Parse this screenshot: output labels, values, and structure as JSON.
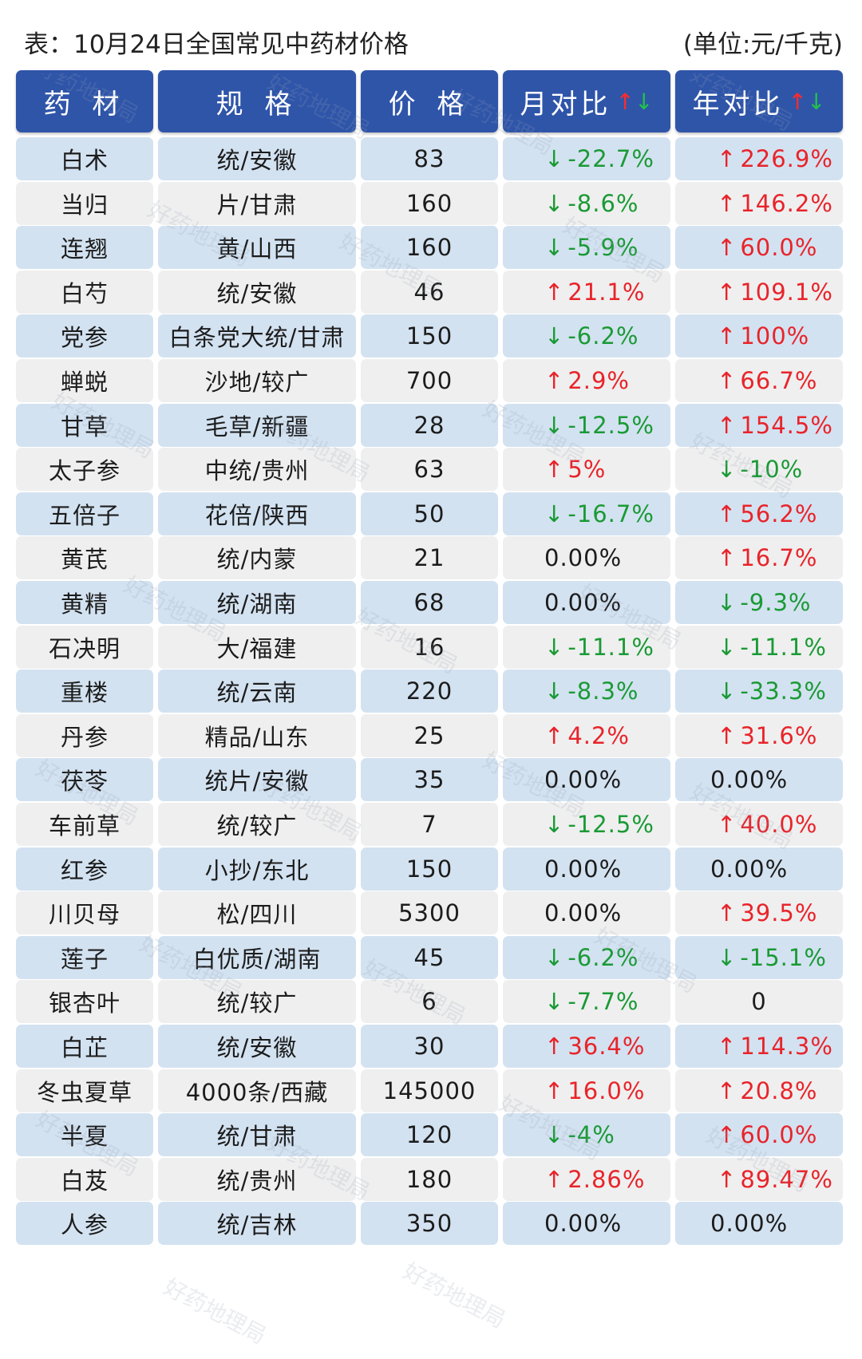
{
  "title": "表：10月24日全国常见中药材价格",
  "unit": "(单位:元/千克)",
  "watermark": "好药地理局",
  "colors": {
    "header_bg": "#2f55a9",
    "row_blue": "#d3e2f1",
    "row_gray": "#efefef",
    "up": "#e8242a",
    "down": "#1a9a35"
  },
  "headers": [
    "药 材",
    "规 格",
    "价 格",
    "月对比",
    "年对比"
  ],
  "header_icons": {
    "up": "↑",
    "down": "↓"
  },
  "rows": [
    {
      "name": "白术",
      "spec": "统/安徽",
      "price": "83",
      "mom": {
        "dir": "down",
        "text": "-22.7%"
      },
      "yoy": {
        "dir": "up",
        "text": "226.9%"
      }
    },
    {
      "name": "当归",
      "spec": "片/甘肃",
      "price": "160",
      "mom": {
        "dir": "down",
        "text": "-8.6%"
      },
      "yoy": {
        "dir": "up",
        "text": "146.2%"
      }
    },
    {
      "name": "连翘",
      "spec": "黄/山西",
      "price": "160",
      "mom": {
        "dir": "down",
        "text": "-5.9%"
      },
      "yoy": {
        "dir": "up",
        "text": "60.0%"
      }
    },
    {
      "name": "白芍",
      "spec": "统/安徽",
      "price": "46",
      "mom": {
        "dir": "up",
        "text": "21.1%"
      },
      "yoy": {
        "dir": "up",
        "text": "109.1%"
      }
    },
    {
      "name": "党参",
      "spec": "白条党大统/甘肃",
      "price": "150",
      "mom": {
        "dir": "down",
        "text": "-6.2%"
      },
      "yoy": {
        "dir": "up",
        "text": "100%"
      }
    },
    {
      "name": "蝉蜕",
      "spec": "沙地/较广",
      "price": "700",
      "mom": {
        "dir": "up",
        "text": "2.9%"
      },
      "yoy": {
        "dir": "up",
        "text": "66.7%"
      }
    },
    {
      "name": "甘草",
      "spec": "毛草/新疆",
      "price": "28",
      "mom": {
        "dir": "down",
        "text": "-12.5%"
      },
      "yoy": {
        "dir": "up",
        "text": "154.5%"
      }
    },
    {
      "name": "太子参",
      "spec": "中统/贵州",
      "price": "63",
      "mom": {
        "dir": "up",
        "text": "5%"
      },
      "yoy": {
        "dir": "down",
        "text": "-10%"
      }
    },
    {
      "name": "五倍子",
      "spec": "花倍/陕西",
      "price": "50",
      "mom": {
        "dir": "down",
        "text": "-16.7%"
      },
      "yoy": {
        "dir": "up",
        "text": "56.2%"
      }
    },
    {
      "name": "黄芪",
      "spec": "统/内蒙",
      "price": "21",
      "mom": {
        "dir": "flat",
        "text": "0.00%"
      },
      "yoy": {
        "dir": "up",
        "text": "16.7%"
      }
    },
    {
      "name": "黄精",
      "spec": "统/湖南",
      "price": "68",
      "mom": {
        "dir": "flat",
        "text": "0.00%"
      },
      "yoy": {
        "dir": "down",
        "text": "-9.3%"
      }
    },
    {
      "name": "石决明",
      "spec": "大/福建",
      "price": "16",
      "mom": {
        "dir": "down",
        "text": "-11.1%"
      },
      "yoy": {
        "dir": "down",
        "text": "-11.1%"
      }
    },
    {
      "name": "重楼",
      "spec": "统/云南",
      "price": "220",
      "mom": {
        "dir": "down",
        "text": "-8.3%"
      },
      "yoy": {
        "dir": "down",
        "text": "-33.3%"
      }
    },
    {
      "name": "丹参",
      "spec": "精品/山东",
      "price": "25",
      "mom": {
        "dir": "up",
        "text": "4.2%"
      },
      "yoy": {
        "dir": "up",
        "text": "31.6%"
      }
    },
    {
      "name": "茯苓",
      "spec": "统片/安徽",
      "price": "35",
      "mom": {
        "dir": "flat",
        "text": "0.00%"
      },
      "yoy": {
        "dir": "flat",
        "text": "0.00%"
      }
    },
    {
      "name": "车前草",
      "spec": "统/较广",
      "price": "7",
      "mom": {
        "dir": "down",
        "text": "-12.5%"
      },
      "yoy": {
        "dir": "up",
        "text": "40.0%"
      }
    },
    {
      "name": "红参",
      "spec": "小抄/东北",
      "price": "150",
      "mom": {
        "dir": "flat",
        "text": "0.00%"
      },
      "yoy": {
        "dir": "flat",
        "text": "0.00%"
      }
    },
    {
      "name": "川贝母",
      "spec": "松/四川",
      "price": "5300",
      "mom": {
        "dir": "flat",
        "text": "0.00%"
      },
      "yoy": {
        "dir": "up",
        "text": "39.5%"
      }
    },
    {
      "name": "莲子",
      "spec": "白优质/湖南",
      "price": "45",
      "mom": {
        "dir": "down",
        "text": "-6.2%"
      },
      "yoy": {
        "dir": "down",
        "text": "-15.1%"
      }
    },
    {
      "name": "银杏叶",
      "spec": "统/较广",
      "price": "6",
      "mom": {
        "dir": "down",
        "text": "-7.7%"
      },
      "yoy": {
        "dir": "zero",
        "text": "0"
      }
    },
    {
      "name": "白芷",
      "spec": "统/安徽",
      "price": "30",
      "mom": {
        "dir": "up",
        "text": "36.4%"
      },
      "yoy": {
        "dir": "up",
        "text": "114.3%"
      }
    },
    {
      "name": "冬虫夏草",
      "spec": "4000条/西藏",
      "price": "145000",
      "mom": {
        "dir": "up",
        "text": "16.0%"
      },
      "yoy": {
        "dir": "up",
        "text": "20.8%"
      }
    },
    {
      "name": "半夏",
      "spec": "统/甘肃",
      "price": "120",
      "mom": {
        "dir": "down",
        "text": "-4%"
      },
      "yoy": {
        "dir": "up",
        "text": "60.0%"
      }
    },
    {
      "name": "白芨",
      "spec": "统/贵州",
      "price": "180",
      "mom": {
        "dir": "up",
        "text": "2.86%"
      },
      "yoy": {
        "dir": "up",
        "text": "89.47%"
      }
    },
    {
      "name": "人参",
      "spec": "统/吉林",
      "price": "350",
      "mom": {
        "dir": "flat",
        "text": "0.00%"
      },
      "yoy": {
        "dir": "flat",
        "text": "0.00%"
      }
    }
  ]
}
